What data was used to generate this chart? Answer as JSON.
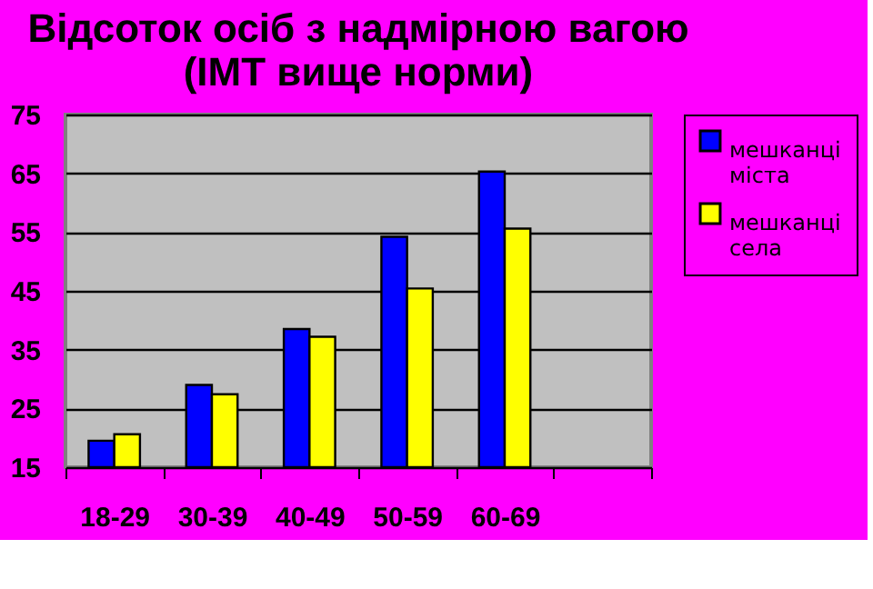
{
  "chart_data": {
    "type": "bar",
    "title": "Відсоток осіб з надмірною вагою\n(IMT вище норми)",
    "categories": [
      "18-29",
      "30-39",
      "40-49",
      "50-59",
      "60-69",
      null
    ],
    "series": [
      {
        "name": "мешканці міста",
        "color": "#0000ff",
        "values": [
          19.5,
          29,
          38.5,
          54.2,
          65.3,
          null
        ]
      },
      {
        "name": "мешканці села",
        "color": "#ffff00",
        "values": [
          20.6,
          27.4,
          37.2,
          45.4,
          55.6,
          null
        ]
      }
    ],
    "ylim": [
      15,
      75
    ],
    "yticks": [
      15,
      25,
      35,
      45,
      55,
      65,
      75
    ],
    "grid": "y",
    "legend": "right"
  }
}
